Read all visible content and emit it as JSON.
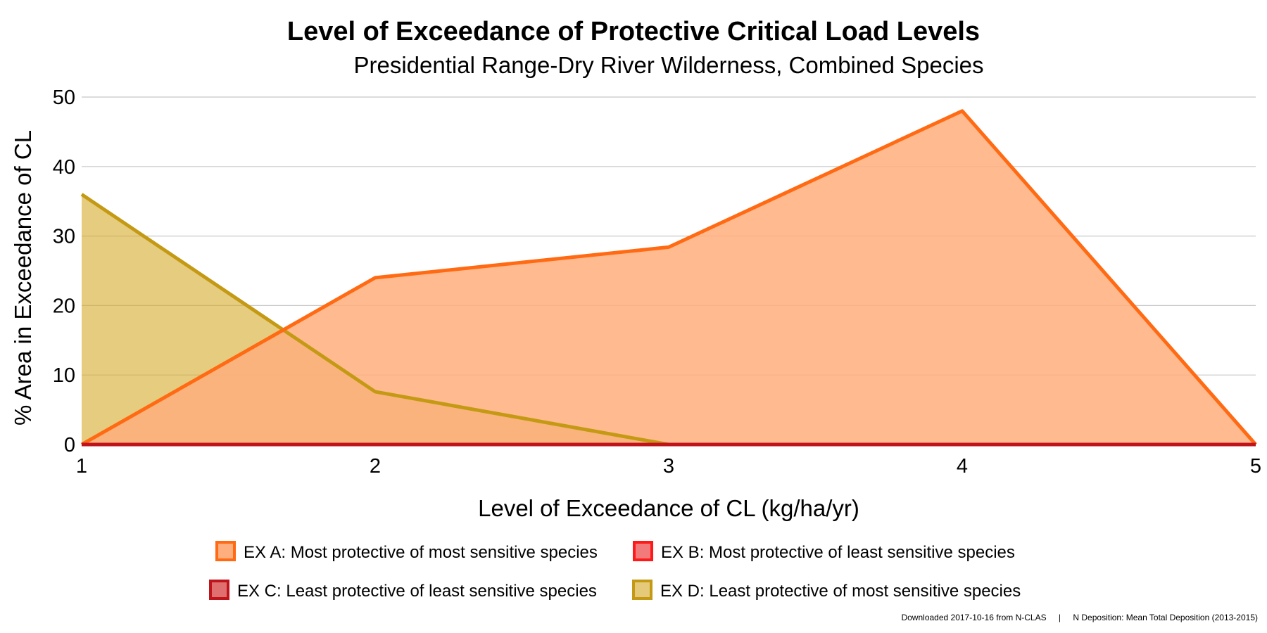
{
  "chart_data": {
    "type": "area",
    "title": "Level of Exceedance of Protective Critical Load Levels",
    "subtitle": "Presidential Range-Dry River Wilderness, Combined Species",
    "xlabel": "Level of Exceedance of CL (kg/ha/yr)",
    "ylabel": "% Area in Exceedance of CL",
    "x": [
      1,
      2,
      3,
      4,
      5
    ],
    "xlim": [
      1,
      5
    ],
    "ylim": [
      0,
      50
    ],
    "x_ticks": [
      "1",
      "2",
      "3",
      "4",
      "5"
    ],
    "y_ticks": [
      "0",
      "10",
      "20",
      "30",
      "40",
      "50"
    ],
    "grid": true,
    "legend_position": "bottom",
    "series": [
      {
        "name": "EX A: Most protective of most sensitive species",
        "values": [
          0,
          24,
          28.4,
          48,
          0
        ],
        "stroke": "#ff6a13",
        "fill": "#ffae7d",
        "swatch_fill": "#ffae7d"
      },
      {
        "name": "EX B: Most protective of least sensitive species",
        "values": [
          0,
          0,
          0,
          0,
          0
        ],
        "stroke": "#ff1a1a",
        "fill": "#ff8080",
        "swatch_fill": "#f27a7a"
      },
      {
        "name": "EX C: Least protective of least sensitive species",
        "values": [
          0,
          0,
          0,
          0,
          0
        ],
        "stroke": "#c0141c",
        "fill": "#e07070",
        "swatch_fill": "#e07070"
      },
      {
        "name": "EX D: Least protective of most sensitive species",
        "values": [
          36,
          7.6,
          0,
          0,
          0
        ],
        "stroke": "#c49a14",
        "fill": "#d4aa2a",
        "swatch_fill": "#e5ca7a"
      }
    ]
  },
  "footer": {
    "downloaded": "Downloaded 2017-10-16 from N-CLAS",
    "separator": "|",
    "deposition": "N Deposition: Mean Total Deposition (2013-2015)"
  }
}
